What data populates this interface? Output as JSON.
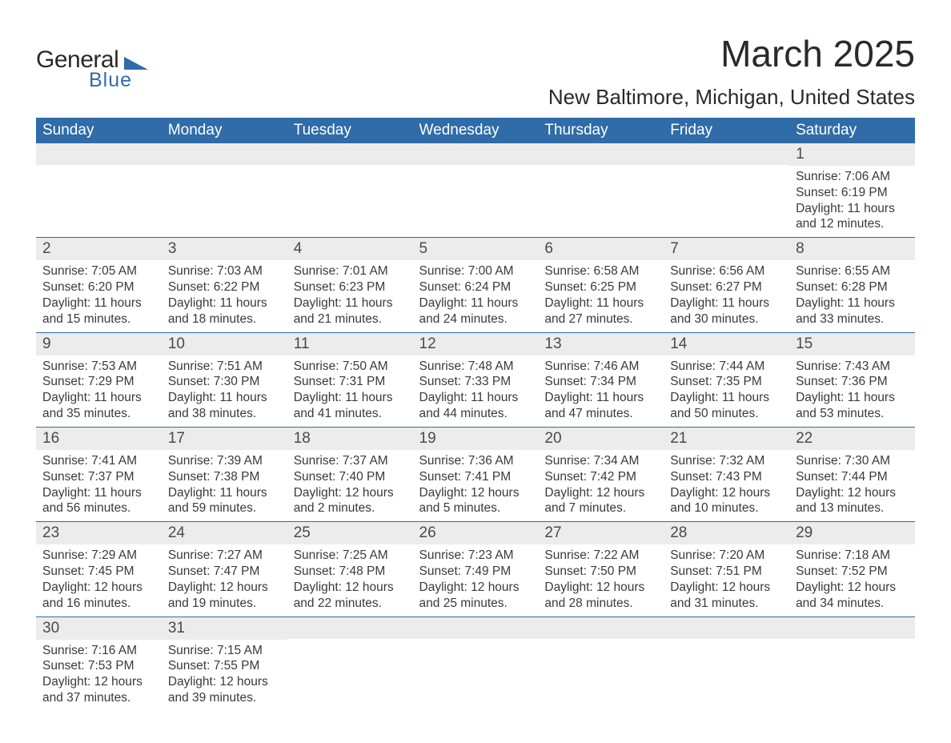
{
  "logo": {
    "word1": "General",
    "word2": "Blue"
  },
  "title": "March 2025",
  "location": "New Baltimore, Michigan, United States",
  "colors": {
    "header_bg": "#2f6ca8",
    "header_text": "#ffffff",
    "daynum_bg": "#ececec",
    "text": "#3a3a3a",
    "border": "#2f6ca8",
    "logo_blue": "#2f6ca8"
  },
  "day_headers": [
    "Sunday",
    "Monday",
    "Tuesday",
    "Wednesday",
    "Thursday",
    "Friday",
    "Saturday"
  ],
  "weeks": [
    [
      null,
      null,
      null,
      null,
      null,
      null,
      {
        "n": "1",
        "sr": "Sunrise: 7:06 AM",
        "ss": "Sunset: 6:19 PM",
        "d1": "Daylight: 11 hours",
        "d2": "and 12 minutes."
      }
    ],
    [
      {
        "n": "2",
        "sr": "Sunrise: 7:05 AM",
        "ss": "Sunset: 6:20 PM",
        "d1": "Daylight: 11 hours",
        "d2": "and 15 minutes."
      },
      {
        "n": "3",
        "sr": "Sunrise: 7:03 AM",
        "ss": "Sunset: 6:22 PM",
        "d1": "Daylight: 11 hours",
        "d2": "and 18 minutes."
      },
      {
        "n": "4",
        "sr": "Sunrise: 7:01 AM",
        "ss": "Sunset: 6:23 PM",
        "d1": "Daylight: 11 hours",
        "d2": "and 21 minutes."
      },
      {
        "n": "5",
        "sr": "Sunrise: 7:00 AM",
        "ss": "Sunset: 6:24 PM",
        "d1": "Daylight: 11 hours",
        "d2": "and 24 minutes."
      },
      {
        "n": "6",
        "sr": "Sunrise: 6:58 AM",
        "ss": "Sunset: 6:25 PM",
        "d1": "Daylight: 11 hours",
        "d2": "and 27 minutes."
      },
      {
        "n": "7",
        "sr": "Sunrise: 6:56 AM",
        "ss": "Sunset: 6:27 PM",
        "d1": "Daylight: 11 hours",
        "d2": "and 30 minutes."
      },
      {
        "n": "8",
        "sr": "Sunrise: 6:55 AM",
        "ss": "Sunset: 6:28 PM",
        "d1": "Daylight: 11 hours",
        "d2": "and 33 minutes."
      }
    ],
    [
      {
        "n": "9",
        "sr": "Sunrise: 7:53 AM",
        "ss": "Sunset: 7:29 PM",
        "d1": "Daylight: 11 hours",
        "d2": "and 35 minutes."
      },
      {
        "n": "10",
        "sr": "Sunrise: 7:51 AM",
        "ss": "Sunset: 7:30 PM",
        "d1": "Daylight: 11 hours",
        "d2": "and 38 minutes."
      },
      {
        "n": "11",
        "sr": "Sunrise: 7:50 AM",
        "ss": "Sunset: 7:31 PM",
        "d1": "Daylight: 11 hours",
        "d2": "and 41 minutes."
      },
      {
        "n": "12",
        "sr": "Sunrise: 7:48 AM",
        "ss": "Sunset: 7:33 PM",
        "d1": "Daylight: 11 hours",
        "d2": "and 44 minutes."
      },
      {
        "n": "13",
        "sr": "Sunrise: 7:46 AM",
        "ss": "Sunset: 7:34 PM",
        "d1": "Daylight: 11 hours",
        "d2": "and 47 minutes."
      },
      {
        "n": "14",
        "sr": "Sunrise: 7:44 AM",
        "ss": "Sunset: 7:35 PM",
        "d1": "Daylight: 11 hours",
        "d2": "and 50 minutes."
      },
      {
        "n": "15",
        "sr": "Sunrise: 7:43 AM",
        "ss": "Sunset: 7:36 PM",
        "d1": "Daylight: 11 hours",
        "d2": "and 53 minutes."
      }
    ],
    [
      {
        "n": "16",
        "sr": "Sunrise: 7:41 AM",
        "ss": "Sunset: 7:37 PM",
        "d1": "Daylight: 11 hours",
        "d2": "and 56 minutes."
      },
      {
        "n": "17",
        "sr": "Sunrise: 7:39 AM",
        "ss": "Sunset: 7:38 PM",
        "d1": "Daylight: 11 hours",
        "d2": "and 59 minutes."
      },
      {
        "n": "18",
        "sr": "Sunrise: 7:37 AM",
        "ss": "Sunset: 7:40 PM",
        "d1": "Daylight: 12 hours",
        "d2": "and 2 minutes."
      },
      {
        "n": "19",
        "sr": "Sunrise: 7:36 AM",
        "ss": "Sunset: 7:41 PM",
        "d1": "Daylight: 12 hours",
        "d2": "and 5 minutes."
      },
      {
        "n": "20",
        "sr": "Sunrise: 7:34 AM",
        "ss": "Sunset: 7:42 PM",
        "d1": "Daylight: 12 hours",
        "d2": "and 7 minutes."
      },
      {
        "n": "21",
        "sr": "Sunrise: 7:32 AM",
        "ss": "Sunset: 7:43 PM",
        "d1": "Daylight: 12 hours",
        "d2": "and 10 minutes."
      },
      {
        "n": "22",
        "sr": "Sunrise: 7:30 AM",
        "ss": "Sunset: 7:44 PM",
        "d1": "Daylight: 12 hours",
        "d2": "and 13 minutes."
      }
    ],
    [
      {
        "n": "23",
        "sr": "Sunrise: 7:29 AM",
        "ss": "Sunset: 7:45 PM",
        "d1": "Daylight: 12 hours",
        "d2": "and 16 minutes."
      },
      {
        "n": "24",
        "sr": "Sunrise: 7:27 AM",
        "ss": "Sunset: 7:47 PM",
        "d1": "Daylight: 12 hours",
        "d2": "and 19 minutes."
      },
      {
        "n": "25",
        "sr": "Sunrise: 7:25 AM",
        "ss": "Sunset: 7:48 PM",
        "d1": "Daylight: 12 hours",
        "d2": "and 22 minutes."
      },
      {
        "n": "26",
        "sr": "Sunrise: 7:23 AM",
        "ss": "Sunset: 7:49 PM",
        "d1": "Daylight: 12 hours",
        "d2": "and 25 minutes."
      },
      {
        "n": "27",
        "sr": "Sunrise: 7:22 AM",
        "ss": "Sunset: 7:50 PM",
        "d1": "Daylight: 12 hours",
        "d2": "and 28 minutes."
      },
      {
        "n": "28",
        "sr": "Sunrise: 7:20 AM",
        "ss": "Sunset: 7:51 PM",
        "d1": "Daylight: 12 hours",
        "d2": "and 31 minutes."
      },
      {
        "n": "29",
        "sr": "Sunrise: 7:18 AM",
        "ss": "Sunset: 7:52 PM",
        "d1": "Daylight: 12 hours",
        "d2": "and 34 minutes."
      }
    ],
    [
      {
        "n": "30",
        "sr": "Sunrise: 7:16 AM",
        "ss": "Sunset: 7:53 PM",
        "d1": "Daylight: 12 hours",
        "d2": "and 37 minutes."
      },
      {
        "n": "31",
        "sr": "Sunrise: 7:15 AM",
        "ss": "Sunset: 7:55 PM",
        "d1": "Daylight: 12 hours",
        "d2": "and 39 minutes."
      },
      null,
      null,
      null,
      null,
      null
    ]
  ]
}
